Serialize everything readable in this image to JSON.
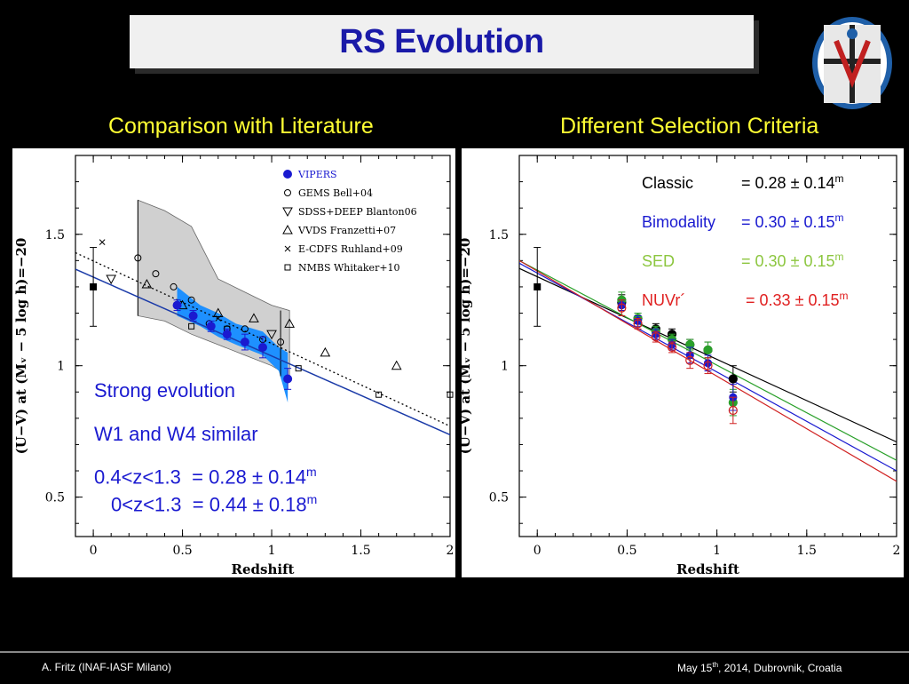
{
  "title": "RS Evolution",
  "subtitle_left": "Comparison with Literature",
  "subtitle_right": "Different Selection Criteria",
  "left_notes": {
    "line1": "Strong evolution",
    "line2": "W1 and W4 similar",
    "fit1_range": "0.4<z<1.3",
    "fit1_value": "= 0.28 ± 0.14",
    "fit1_unit": "m",
    "fit2_range": "0<z<1.3",
    "fit2_value": "= 0.44 ± 0.18",
    "fit2_unit": "m"
  },
  "selection_criteria": [
    {
      "name": "Classic",
      "value": "= 0.28 ± 0.14",
      "unit": "m",
      "color": "#000000"
    },
    {
      "name": "Bimodality",
      "value": "= 0.30 ± 0.15",
      "unit": "m",
      "color": "#1a1ad0"
    },
    {
      "name": "SED",
      "value": "= 0.30 ± 0.15",
      "unit": "m",
      "color": "#8cc63f"
    },
    {
      "name": "NUVr´",
      "value": "= 0.33 ± 0.15",
      "unit": "m",
      "color": "#e02020"
    }
  ],
  "footer": {
    "author": "A. Fritz (INAF-IASF Milano)",
    "date_prefix": "May 15",
    "date_sup": "th",
    "date_suffix": ", 2014, Dubrovnik, Croatia"
  },
  "colors": {
    "title": "#1a1aa8",
    "subhead": "#ffff33",
    "vipers": "#1a1ad0",
    "band": "#1e90ff",
    "grey_band": "#cccccc"
  },
  "chart_data": [
    {
      "type": "scatter",
      "title": "",
      "xlabel": "Redshift",
      "ylabel": "(U−V) at (Mᵥ − 5 log h)=−20",
      "xlim": [
        -0.1,
        2.0
      ],
      "ylim": [
        0.35,
        1.8
      ],
      "xticks": [
        0,
        0.5,
        1,
        1.5,
        2
      ],
      "xtick_labels": [
        "0",
        "0.5",
        "1",
        "1.5",
        "2"
      ],
      "yticks": [
        0.5,
        1,
        1.5
      ],
      "ytick_labels": [
        "0.5",
        "1",
        "1.5"
      ],
      "legend": [
        "VIPERS",
        "GEMS Bell+04",
        "SDSS+DEEP Blanton06",
        "VVDS Franzetti+07",
        "E-CDFS Ruhland+09",
        "NMBS Whitaker+10"
      ],
      "legend_position": "top-right",
      "series": [
        {
          "name": "VIPERS",
          "x": [
            0.47,
            0.56,
            0.66,
            0.75,
            0.85,
            0.95,
            1.09
          ],
          "y": [
            1.23,
            1.19,
            1.15,
            1.12,
            1.09,
            1.07,
            0.95
          ],
          "yerr": [
            0.02,
            0.02,
            0.02,
            0.02,
            0.03,
            0.04,
            0.04
          ]
        },
        {
          "name": "GEMS Bell+04",
          "x": [
            0.25,
            0.35,
            0.45,
            0.55,
            0.65,
            0.75,
            0.85,
            0.95,
            1.05
          ],
          "y": [
            1.41,
            1.35,
            1.3,
            1.25,
            1.16,
            1.14,
            1.14,
            1.1,
            1.09
          ]
        },
        {
          "name": "SDSS+DEEP Blanton06",
          "x": [
            0.1,
            1.0
          ],
          "y": [
            1.33,
            1.12
          ]
        },
        {
          "name": "VVDS Franzetti+07",
          "x": [
            0.3,
            0.5,
            0.7,
            0.9,
            1.1,
            1.3,
            1.7
          ],
          "y": [
            1.31,
            1.23,
            1.2,
            1.18,
            1.16,
            1.05,
            1.0
          ]
        },
        {
          "name": "E-CDFS Ruhland+09",
          "x": [
            0.05,
            0.7
          ],
          "y": [
            1.47,
            1.18
          ]
        },
        {
          "name": "NMBS Whitaker+10",
          "x": [
            0.55,
            0.75,
            1.15,
            1.6,
            2.0
          ],
          "y": [
            1.15,
            1.14,
            0.99,
            0.89,
            0.89
          ]
        },
        {
          "name": "z0 reference",
          "x": [
            0.0
          ],
          "y": [
            1.3
          ],
          "yerr": [
            0.15
          ]
        },
        {
          "name": "VIPERS fit",
          "x": [
            -0.1,
            2.0
          ],
          "y": [
            1.367,
            0.737
          ]
        },
        {
          "name": "literature fit",
          "x": [
            -0.1,
            2.0
          ],
          "y": [
            1.43,
            0.77
          ]
        }
      ],
      "bands": [
        {
          "name": "VIPERS band",
          "x": [
            0.47,
            0.6,
            0.7,
            0.8,
            0.95,
            1.04,
            1.09
          ],
          "ymin": [
            1.19,
            1.15,
            1.11,
            1.08,
            1.04,
            0.98,
            0.86
          ],
          "ymax": [
            1.3,
            1.23,
            1.2,
            1.16,
            1.13,
            1.07,
            1.05
          ]
        },
        {
          "name": "literature band",
          "x": [
            0.25,
            0.4,
            0.55,
            0.7,
            0.85,
            1.0,
            1.1
          ],
          "ymin": [
            1.19,
            1.17,
            1.12,
            1.08,
            1.04,
            1.0,
            0.96
          ],
          "ymax": [
            1.63,
            1.59,
            1.53,
            1.33,
            1.28,
            1.23,
            1.21
          ]
        }
      ]
    },
    {
      "type": "scatter",
      "title": "",
      "xlabel": "Redshift",
      "ylabel": "(U−V) at (Mᵥ − 5 log h)=−20",
      "xlim": [
        -0.1,
        2.0
      ],
      "ylim": [
        0.35,
        1.8
      ],
      "xticks": [
        0,
        0.5,
        1,
        1.5,
        2
      ],
      "xtick_labels": [
        "0",
        "0.5",
        "1",
        "1.5",
        "2"
      ],
      "yticks": [
        0.5,
        1,
        1.5
      ],
      "ytick_labels": [
        "0.5",
        "1",
        "1.5"
      ],
      "series": [
        {
          "name": "Classic",
          "x": [
            0.47,
            0.56,
            0.66,
            0.75,
            0.85,
            0.95,
            1.09
          ],
          "y": [
            1.24,
            1.18,
            1.14,
            1.12,
            1.08,
            1.06,
            0.95
          ],
          "yerr": [
            0.03,
            0.02,
            0.02,
            0.02,
            0.02,
            0.03,
            0.05
          ]
        },
        {
          "name": "Bimodality",
          "x": [
            0.47,
            0.56,
            0.66,
            0.75,
            0.85,
            0.95,
            1.09
          ],
          "y": [
            1.23,
            1.17,
            1.12,
            1.08,
            1.04,
            1.01,
            0.88
          ],
          "yerr": [
            0.02,
            0.02,
            0.02,
            0.02,
            0.03,
            0.03,
            0.05
          ]
        },
        {
          "name": "SED",
          "x": [
            0.47,
            0.56,
            0.66,
            0.75,
            0.85,
            0.95,
            1.09
          ],
          "y": [
            1.25,
            1.18,
            1.13,
            1.1,
            1.08,
            1.06,
            0.86
          ],
          "yerr": [
            0.03,
            0.02,
            0.02,
            0.02,
            0.02,
            0.03,
            0.05
          ]
        },
        {
          "name": "NUVr´",
          "x": [
            0.47,
            0.56,
            0.66,
            0.75,
            0.85,
            0.95,
            1.09
          ],
          "y": [
            1.22,
            1.16,
            1.11,
            1.07,
            1.02,
            1.0,
            0.83
          ],
          "yerr": [
            0.03,
            0.02,
            0.02,
            0.02,
            0.03,
            0.03,
            0.05
          ]
        },
        {
          "name": "z0 reference",
          "x": [
            0.0
          ],
          "y": [
            1.3
          ],
          "yerr": [
            0.15
          ]
        }
      ],
      "fits": [
        {
          "name": "Classic",
          "x": [
            -0.1,
            2.0
          ],
          "y": [
            1.37,
            0.71
          ]
        },
        {
          "name": "Bimodality",
          "x": [
            -0.1,
            2.0
          ],
          "y": [
            1.39,
            0.6
          ]
        },
        {
          "name": "SED",
          "x": [
            -0.1,
            2.0
          ],
          "y": [
            1.4,
            0.64
          ]
        },
        {
          "name": "NUVr´",
          "x": [
            -0.1,
            2.0
          ],
          "y": [
            1.4,
            0.56
          ]
        }
      ]
    }
  ]
}
